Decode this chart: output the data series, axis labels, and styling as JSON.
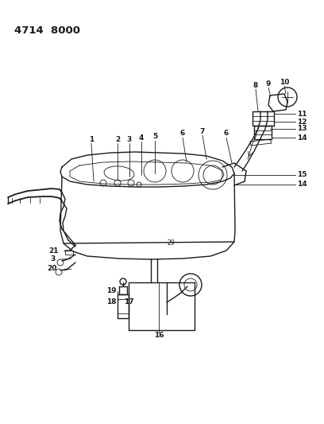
{
  "title": "4714  8000",
  "bg_color": "#ffffff",
  "line_color": "#1a1a1a",
  "lw_main": 1.0,
  "lw_thin": 0.6,
  "label_fontsize": 6.5,
  "title_fontsize": 9.5,
  "fig_width": 4.08,
  "fig_height": 5.33,
  "dpi": 100,
  "xlim": [
    0,
    408
  ],
  "ylim": [
    0,
    533
  ]
}
